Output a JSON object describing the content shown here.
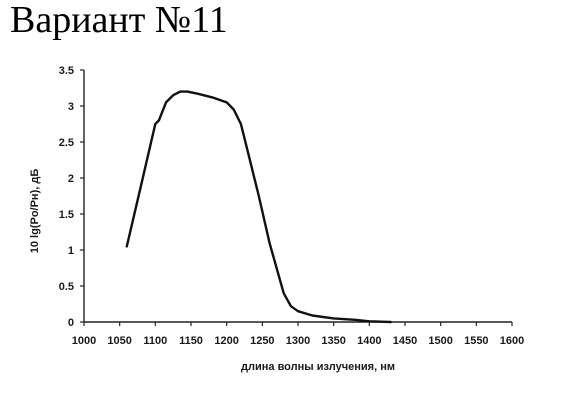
{
  "page": {
    "title": "Вариант №11"
  },
  "colors": {
    "line": "#111111",
    "axis": "#222222",
    "text": "#1a1a1a",
    "background": "#ffffff"
  },
  "chart_data": {
    "type": "line",
    "title": "",
    "xlabel": "длина волны излучения, нм",
    "ylabel": "10 lg(Po/Pн), дБ",
    "xlim": [
      1000,
      1600
    ],
    "ylim": [
      0,
      3.5
    ],
    "x_ticks": [
      "1000",
      "1050",
      "1100",
      "1150",
      "1200",
      "1250",
      "1300",
      "1350",
      "1400",
      "1450",
      "1500",
      "1550",
      "1600"
    ],
    "y_ticks": [
      "0",
      "0.5",
      "1",
      "1.5",
      "2",
      "2.5",
      "3",
      "3.5"
    ],
    "grid": false,
    "series": [
      {
        "x": [
          1060,
          1080,
          1100,
          1105,
          1115,
          1125,
          1135,
          1145,
          1160,
          1180,
          1200,
          1210,
          1220,
          1230,
          1245,
          1260,
          1270,
          1280,
          1290,
          1300,
          1320,
          1350,
          1380,
          1400,
          1430
        ],
        "y": [
          1.05,
          1.9,
          2.75,
          2.8,
          3.05,
          3.15,
          3.2,
          3.2,
          3.17,
          3.12,
          3.05,
          2.95,
          2.75,
          2.35,
          1.75,
          1.1,
          0.75,
          0.4,
          0.22,
          0.15,
          0.09,
          0.05,
          0.03,
          0.01,
          0.0
        ]
      }
    ]
  }
}
